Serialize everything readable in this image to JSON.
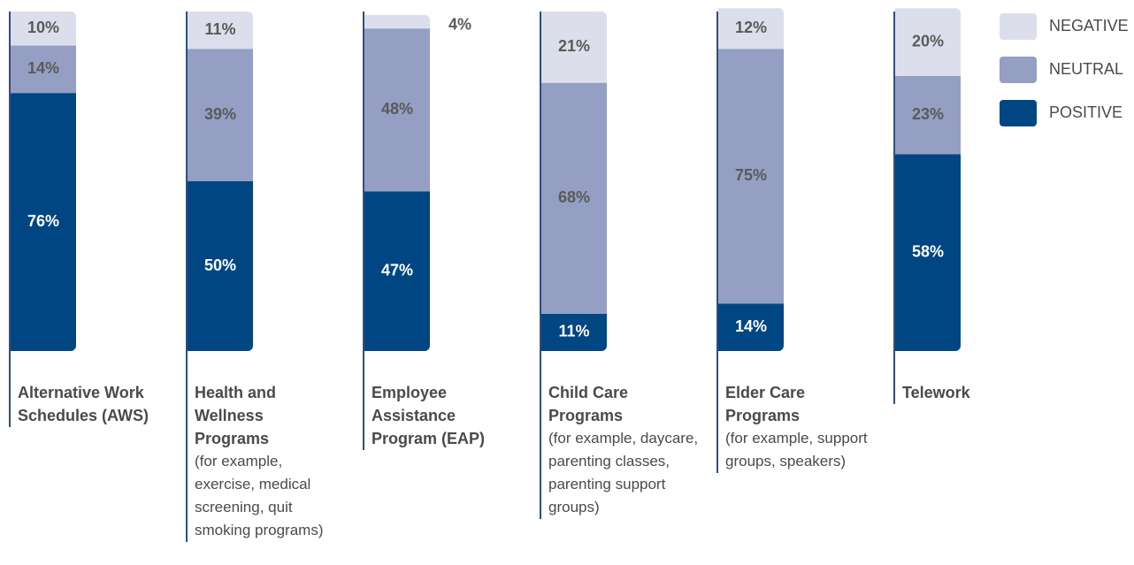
{
  "chart_data": {
    "type": "stacked_bar",
    "categories": [
      "Alternative Work Schedules (AWS)",
      "Health and Wellness Programs",
      "Employee Assistance Program (EAP)",
      "Child Care Programs",
      "Elder Care Programs",
      "Telework"
    ],
    "descriptions": [
      null,
      "(for example, exercise, medical screening, quit smoking programs)",
      null,
      "(for example, daycare, parenting classes, parenting support groups)",
      "(for example, support groups, speakers)",
      null
    ],
    "series": [
      {
        "name": "POSITIVE",
        "color": "#004683",
        "values": [
          76,
          50,
          47,
          11,
          14,
          58
        ],
        "value_labels": [
          "76%",
          "50%",
          "47%",
          "11%",
          "14%",
          "58%"
        ]
      },
      {
        "name": "NEUTRAL",
        "color": "#949fc3",
        "values": [
          14,
          39,
          48,
          68,
          75,
          23
        ],
        "value_labels": [
          "14%",
          "39%",
          "48%",
          "68%",
          "75%",
          "23%"
        ]
      },
      {
        "name": "NEGATIVE",
        "color": "#dcdfeb",
        "values": [
          10,
          11,
          4,
          21,
          12,
          20
        ],
        "value_labels": [
          "10%",
          "11%",
          "4%",
          "21%",
          "12%",
          "20%"
        ]
      }
    ],
    "ylim": [
      0,
      100
    ],
    "legend": "top-right"
  }
}
